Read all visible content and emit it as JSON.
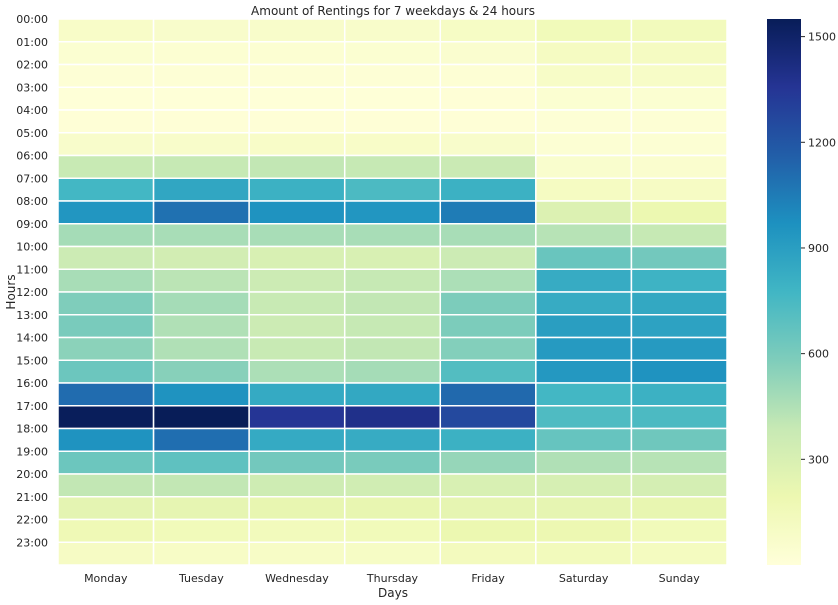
{
  "chart_data": {
    "type": "heatmap",
    "title": "Amount of Rentings for 7 weekdays & 24 hours",
    "xlabel": "Days",
    "ylabel": "Hours",
    "x": [
      "Monday",
      "Tuesday",
      "Wednesday",
      "Thursday",
      "Friday",
      "Saturday",
      "Sunday"
    ],
    "y": [
      "00:00",
      "01:00",
      "02:00",
      "03:00",
      "04:00",
      "05:00",
      "06:00",
      "07:00",
      "08:00",
      "09:00",
      "10:00",
      "11:00",
      "12:00",
      "13:00",
      "14:00",
      "15:00",
      "16:00",
      "17:00",
      "18:00",
      "19:00",
      "20:00",
      "21:00",
      "22:00",
      "23:00"
    ],
    "values": [
      [
        80,
        70,
        75,
        75,
        95,
        150,
        140
      ],
      [
        40,
        35,
        35,
        40,
        50,
        110,
        110
      ],
      [
        20,
        20,
        20,
        20,
        25,
        85,
        85
      ],
      [
        10,
        10,
        10,
        10,
        15,
        40,
        40
      ],
      [
        15,
        15,
        15,
        15,
        15,
        20,
        25
      ],
      [
        70,
        75,
        80,
        80,
        70,
        30,
        30
      ],
      [
        380,
        390,
        400,
        390,
        370,
        60,
        55
      ],
      [
        770,
        860,
        800,
        740,
        800,
        110,
        100
      ],
      [
        940,
        1090,
        960,
        940,
        1050,
        280,
        200
      ],
      [
        480,
        470,
        470,
        470,
        470,
        430,
        390
      ],
      [
        360,
        330,
        300,
        300,
        360,
        650,
        620
      ],
      [
        470,
        420,
        360,
        390,
        460,
        830,
        790
      ],
      [
        580,
        480,
        380,
        400,
        590,
        830,
        850
      ],
      [
        600,
        450,
        360,
        390,
        590,
        900,
        880
      ],
      [
        550,
        450,
        380,
        400,
        570,
        920,
        920
      ],
      [
        640,
        560,
        460,
        480,
        720,
        930,
        960
      ],
      [
        1110,
        960,
        840,
        850,
        1120,
        770,
        800
      ],
      [
        1540,
        1550,
        1350,
        1390,
        1260,
        730,
        740
      ],
      [
        960,
        1100,
        840,
        830,
        800,
        660,
        630
      ],
      [
        640,
        680,
        620,
        600,
        520,
        450,
        430
      ],
      [
        400,
        400,
        350,
        340,
        300,
        310,
        320
      ],
      [
        240,
        230,
        220,
        220,
        230,
        230,
        220
      ],
      [
        170,
        150,
        140,
        150,
        200,
        190,
        150
      ],
      [
        100,
        90,
        90,
        95,
        130,
        140,
        120
      ]
    ],
    "vmin": 0,
    "vmax": 1550,
    "colorbar_ticks": [
      300,
      600,
      900,
      1200,
      1500
    ],
    "colormap": "YlGnBu",
    "grid": "white cell borders"
  }
}
